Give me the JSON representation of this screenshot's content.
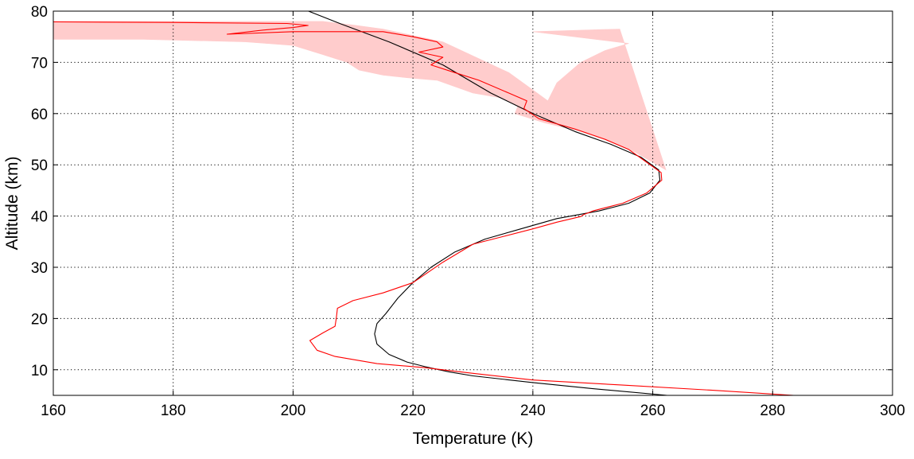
{
  "chart_data": {
    "type": "line",
    "xlabel": "Temperature (K)",
    "ylabel": "Altitude (km)",
    "xlim": [
      160,
      300
    ],
    "ylim": [
      5,
      80
    ],
    "xticks": [
      160,
      180,
      200,
      220,
      240,
      260,
      280,
      300
    ],
    "yticks": [
      10,
      20,
      30,
      40,
      50,
      60,
      70,
      80
    ],
    "xtick_labels": [
      "160",
      "180",
      "200",
      "220",
      "240",
      "260",
      "280",
      "300"
    ],
    "ytick_labels": [
      "10",
      "20",
      "30",
      "40",
      "50",
      "60",
      "70",
      "80"
    ],
    "grid": true,
    "legend": false,
    "colors": {
      "measured": "#ff0000",
      "uncertainty_band": "#ffcccc",
      "model": "#000000",
      "grid": "#000000"
    },
    "series": [
      {
        "kind": "line",
        "color": "#000000",
        "points": [
          [
            262.4,
            5
          ],
          [
            250,
            6.3
          ],
          [
            240,
            7.5
          ],
          [
            230,
            8.8
          ],
          [
            226,
            9.6
          ],
          [
            222,
            10.6
          ],
          [
            219,
            11.5
          ],
          [
            216,
            13
          ],
          [
            214,
            15
          ],
          [
            213.6,
            17
          ],
          [
            214,
            19
          ],
          [
            215.5,
            21
          ],
          [
            217.5,
            24
          ],
          [
            220,
            27
          ],
          [
            223,
            30
          ],
          [
            227,
            33
          ],
          [
            232,
            35.5
          ],
          [
            238,
            37.5
          ],
          [
            244,
            39.5
          ],
          [
            251,
            41
          ],
          [
            256,
            42.5
          ],
          [
            259.5,
            44.5
          ],
          [
            261.2,
            47
          ],
          [
            261,
            49
          ],
          [
            258,
            51.5
          ],
          [
            253,
            54
          ],
          [
            247,
            56.5
          ],
          [
            240,
            60
          ],
          [
            233,
            64
          ],
          [
            225,
            69.5
          ],
          [
            216,
            74
          ],
          [
            208,
            77.5
          ],
          [
            201.5,
            80.5
          ]
        ]
      },
      {
        "kind": "line",
        "color": "#ff0000",
        "points": [
          [
            283.5,
            5
          ],
          [
            270,
            6
          ],
          [
            255,
            7
          ],
          [
            240,
            8
          ],
          [
            230,
            9.3
          ],
          [
            222,
            10.4
          ],
          [
            214,
            11.2
          ],
          [
            207,
            12.6
          ],
          [
            204,
            13.8
          ],
          [
            202.8,
            15.7
          ],
          [
            205,
            17.2
          ],
          [
            207,
            18.5
          ],
          [
            207.2,
            20
          ],
          [
            207.4,
            22
          ],
          [
            210,
            23.5
          ],
          [
            215,
            25
          ],
          [
            220,
            27
          ],
          [
            225,
            31
          ],
          [
            230,
            34.5
          ],
          [
            235,
            36
          ],
          [
            240,
            37.5
          ],
          [
            244,
            38.8
          ],
          [
            248,
            39.9
          ],
          [
            248.5,
            40.3
          ],
          [
            250,
            41
          ],
          [
            255,
            42.5
          ],
          [
            259,
            44.5
          ],
          [
            261.5,
            47
          ],
          [
            261.4,
            48.5
          ],
          [
            259,
            50.5
          ],
          [
            256,
            53
          ],
          [
            252,
            55
          ],
          [
            247,
            57
          ],
          [
            241,
            59
          ],
          [
            238.5,
            61
          ],
          [
            239,
            62.5
          ],
          [
            236,
            64
          ],
          [
            231,
            66.5
          ],
          [
            227,
            68
          ],
          [
            223,
            69.5
          ],
          [
            225,
            71
          ],
          [
            221,
            72
          ],
          [
            225,
            73
          ],
          [
            224,
            74
          ],
          [
            220,
            75
          ],
          [
            215,
            76
          ],
          [
            200,
            76
          ],
          [
            189,
            75.5
          ],
          [
            195,
            76.3
          ],
          [
            200,
            76.8
          ],
          [
            202.5,
            77.2
          ],
          [
            199,
            77.6
          ],
          [
            180,
            77.8
          ],
          [
            160,
            77.9
          ]
        ]
      },
      {
        "kind": "band",
        "color": "#ffcccc",
        "lower": [
          [
            160,
            78
          ],
          [
            160,
            74.5
          ],
          [
            175,
            74.5
          ],
          [
            192,
            74
          ],
          [
            200,
            73.3
          ],
          [
            205,
            71.5
          ],
          [
            209,
            70
          ],
          [
            211,
            68.5
          ],
          [
            215,
            67.5
          ],
          [
            219,
            67
          ],
          [
            224,
            66.5
          ],
          [
            230,
            64
          ],
          [
            235,
            63
          ],
          [
            237.5,
            61.5
          ],
          [
            237,
            60
          ],
          [
            242,
            58.2
          ],
          [
            248,
            56.5
          ],
          [
            253,
            54.5
          ],
          [
            257,
            52.5
          ]
        ],
        "upper": [
          [
            257,
            52.5
          ],
          [
            262.2,
            49
          ],
          [
            254.5,
            76.5
          ],
          [
            240,
            76
          ],
          [
            256,
            73.7
          ],
          [
            252,
            72.3
          ],
          [
            248,
            70
          ],
          [
            244,
            66
          ],
          [
            242.5,
            62.5
          ],
          [
            236,
            68
          ],
          [
            225,
            74
          ],
          [
            215,
            76.5
          ],
          [
            210,
            77.3
          ],
          [
            205,
            78
          ],
          [
            185,
            78
          ],
          [
            160,
            78
          ]
        ]
      }
    ]
  }
}
